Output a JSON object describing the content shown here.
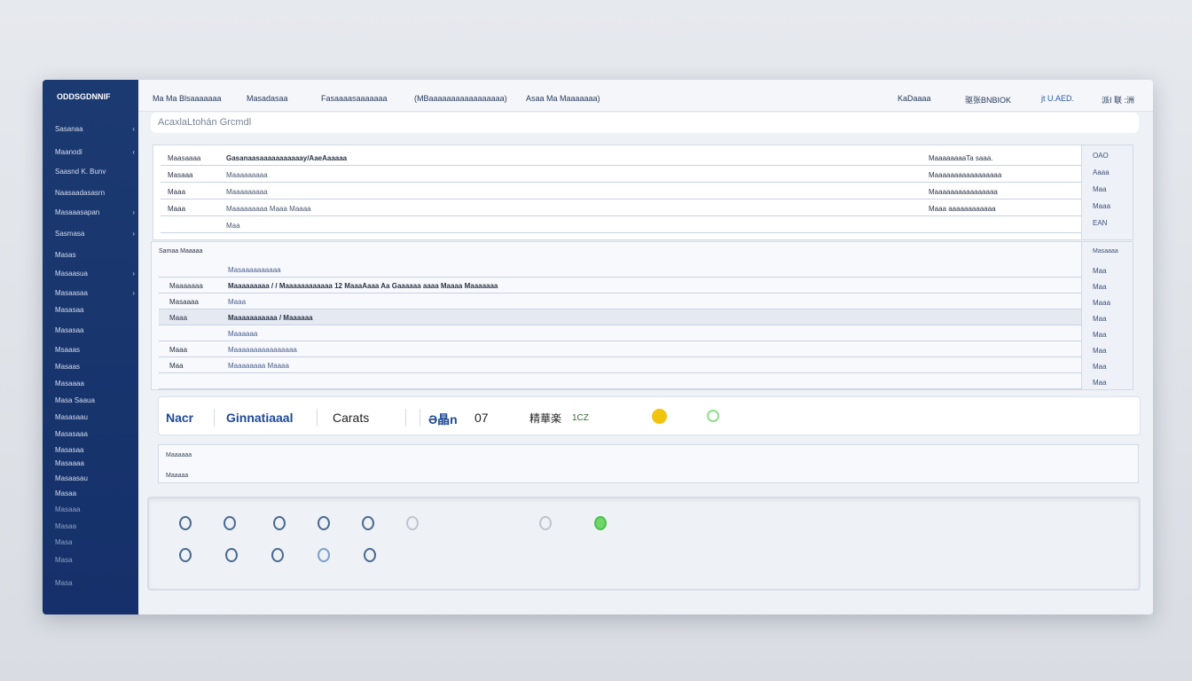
{
  "sidebar": {
    "brand": "ODDSGDNNIF",
    "items": [
      {
        "label": "Sasanaa",
        "mark": "‹"
      },
      {
        "label": "Maanodi",
        "mark": "‹"
      },
      {
        "label": "Saasnd K. Bunv",
        "mark": ""
      },
      {
        "label": "Naasaadasasrn",
        "mark": ""
      },
      {
        "label": "Masaaasapan",
        "mark": "›"
      },
      {
        "label": "Sasmasa",
        "mark": "›"
      },
      {
        "label": "Masas",
        "mark": ""
      },
      {
        "label": "Masaasua",
        "mark": "›"
      },
      {
        "label": "Masaasaa",
        "mark": "›"
      },
      {
        "label": "Masasaa",
        "mark": ""
      },
      {
        "label": "Masasaa",
        "mark": ""
      },
      {
        "label": "Msaaas",
        "mark": ""
      },
      {
        "label": "Masaas",
        "mark": ""
      },
      {
        "label": "Masaaaa",
        "mark": ""
      },
      {
        "label": "Masa Saaua",
        "mark": ""
      },
      {
        "label": "Masasaau",
        "mark": ""
      },
      {
        "label": "Masasaaa",
        "mark": ""
      },
      {
        "label": "Masasaa",
        "mark": ""
      },
      {
        "label": "Masaaaa",
        "mark": ""
      },
      {
        "label": "Masaasau",
        "mark": ""
      },
      {
        "label": "Masaa",
        "mark": ""
      },
      {
        "label": "Masaaa",
        "mark": ""
      },
      {
        "label": "Masaa",
        "mark": ""
      },
      {
        "label": "Masa",
        "mark": ""
      },
      {
        "label": "Masa",
        "mark": ""
      },
      {
        "label": "Masa",
        "mark": ""
      }
    ]
  },
  "nav": {
    "items": [
      "Ma Ma Blsaaaaaaa",
      "Masadasaa",
      "Fasaaaasaaaaaaa",
      "(MBaaaaaaaaaaaaaaaaa)",
      "Asaa Ma Maaaaaaa)"
    ],
    "right": [
      "KaDaaaa",
      "驱张BNBIOK",
      "jt U.AED.",
      "派I 联 :洲"
    ]
  },
  "search": {
    "placeholder": "AcaxlaLtohán Grcmdl"
  },
  "table1": {
    "rows": [
      {
        "c1": "Maasaaaa",
        "c2": "Gasanaasaaaaaaaaaaay/AaeAaaaaa",
        "c3": "MaaaaaaaaTa saaa.",
        "r": "OAO"
      },
      {
        "c1": "Masaaa",
        "c2": "Maaaaaaaaa",
        "c3": "Maaaaaaaaaaaaaaaaa",
        "r": "Aaaa"
      },
      {
        "c1": "Maaa",
        "c2": "Maaaaaaaaa",
        "c3": "Maaaaaaaaaaaaaaaa",
        "r": "Maa"
      },
      {
        "c1": "Maaa",
        "c2": "Maaaaaaaaa  Maaa Maaaa",
        "c3": "Maaa aaaaaaaaaaaa",
        "r": "Maaa"
      },
      {
        "c1": "",
        "c2": "Maa",
        "c3": "",
        "r": "EAN"
      }
    ]
  },
  "table2": {
    "header": "Samaa Maaaaa",
    "header_right": "Masaaaa",
    "rows": [
      {
        "c1": "",
        "c2": "Masaaaaaaaaaa",
        "r": "Maa"
      },
      {
        "c1": "Maaaaaaa",
        "c2": "Maaaaaaaaa / / Maaaaaaaaaaaa 12 MaaaAaaa Aa Gaaaaaa aaaa Maaaa Maaaaaaa",
        "r": "Maa"
      },
      {
        "c1": "Masaaaa",
        "c2": "Maaa",
        "r": "Maaa"
      },
      {
        "c1": "Maaa",
        "c2": "Maaaaaaaaaaa / Maaaaaa",
        "r": "Maa"
      },
      {
        "c1": "",
        "c2": "Maaaaaa",
        "r": "Maa"
      },
      {
        "c1": "Maaa",
        "c2": "Maaaaaaaaaaaaaaaa",
        "r": "Maa"
      },
      {
        "c1": "Maa",
        "c2": "Maaaaaaaa Maaaa",
        "r": "Maa"
      },
      {
        "c1": "",
        "c2": "",
        "r": "Maa"
      }
    ]
  },
  "toolbar": {
    "items": [
      "Nacr",
      "Ginnatiaaal",
      "Carats",
      "Ə晶n",
      "07",
      "精華楽",
      "1CZ"
    ],
    "accent": "#1e4a96",
    "yellow": "#f1c40f",
    "green": "#59c451"
  },
  "panel": {
    "lines": [
      "Maaaaaa",
      "Maaaaa"
    ]
  },
  "icons": {
    "row1": [
      "globe-icon",
      "egg-icon",
      "bug-icon",
      "leaf-icon",
      "earth-icon",
      "shield-icon",
      "",
      "",
      "pin-icon",
      "check-circle-icon"
    ],
    "row2": [
      "location-pin-icon",
      "spiral-icon",
      "tree-icon",
      "flower-icon",
      "world-icon"
    ]
  }
}
